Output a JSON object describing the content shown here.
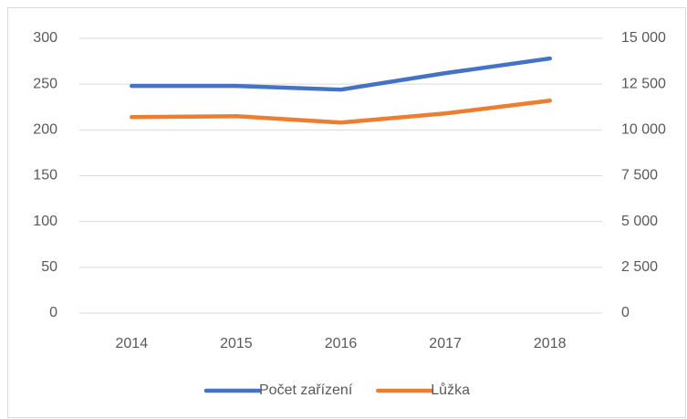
{
  "chart_data": {
    "type": "line",
    "categories": [
      "2014",
      "2015",
      "2016",
      "2017",
      "2018"
    ],
    "series": [
      {
        "name": "Počet zařízení",
        "color": "#4472c4",
        "values": [
          248,
          248,
          244,
          262,
          278
        ]
      },
      {
        "name": "Lůžka",
        "color": "#ed7d31",
        "axis": "y2",
        "values": [
          10700,
          10750,
          10400,
          10900,
          11600
        ]
      }
    ],
    "ylim": [
      0,
      300
    ],
    "yticks": [
      0,
      50,
      100,
      150,
      200,
      250,
      300
    ],
    "y2lim": [
      0,
      15000
    ],
    "y2ticks": [
      0,
      {
        "value": 2500,
        "label": "2 500"
      },
      {
        "value": 5000,
        "label": "5 000"
      },
      {
        "value": 7500,
        "label": "7 500"
      },
      {
        "value": 10000,
        "label": "10 000"
      },
      {
        "value": 12500,
        "label": "12 500"
      },
      {
        "value": 15000,
        "label": "15 000"
      }
    ],
    "grid": true,
    "legend": "bottom"
  }
}
